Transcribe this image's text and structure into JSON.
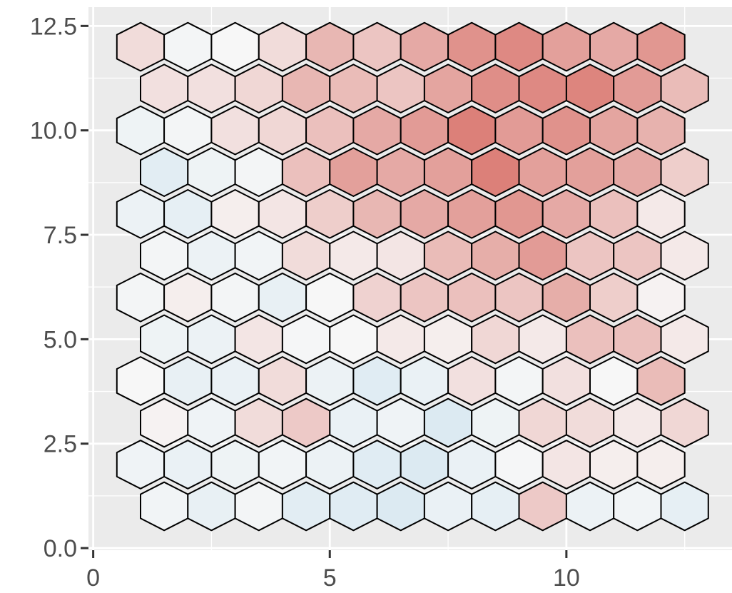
{
  "chart_data": {
    "type": "heatmap",
    "subtype": "hexbin",
    "title": "",
    "xlabel": "",
    "ylabel": "",
    "xlim": [
      -0.1,
      13.5
    ],
    "ylim": [
      -0.05,
      12.95
    ],
    "x_ticks": [
      0,
      5,
      10
    ],
    "x_tick_labels": [
      "0",
      "5",
      "10"
    ],
    "y_ticks": [
      0,
      2.5,
      5,
      7.5,
      10,
      12.5
    ],
    "y_tick_labels": [
      "0.0",
      "2.5",
      "5.0",
      "7.5",
      "10.0",
      "12.5"
    ],
    "grid": true,
    "legend": "none",
    "colors": {
      "panel": "#EBEBEB",
      "grid": "#FFFFFF",
      "hex_outline": "#000000",
      "low": "#D1E5F0",
      "mid": "#F7F7F7",
      "high": "#DC8079"
    },
    "value_range": [
      -1,
      1
    ],
    "hex_width": 1,
    "rows": [
      {
        "y": 1.0,
        "x_start": 1.5,
        "values": [
          -0.15,
          -0.4,
          -0.1,
          -0.55,
          -0.6,
          -0.7,
          -0.35,
          -0.45,
          0.5,
          -0.3,
          -0.15,
          -0.45
        ]
      },
      {
        "y": 2.0,
        "x_start": 1.0,
        "values": [
          -0.2,
          -0.35,
          -0.25,
          -0.15,
          -0.3,
          -0.6,
          -0.7,
          -0.35,
          -0.05,
          0.2,
          0.1,
          0.1
        ]
      },
      {
        "y": 3.0,
        "x_start": 1.5,
        "values": [
          0.05,
          -0.2,
          0.3,
          0.5,
          -0.35,
          -0.2,
          -0.7,
          -0.25,
          0.35,
          0.3,
          0.15,
          0.35
        ]
      },
      {
        "y": 4.0,
        "x_start": 1.0,
        "values": [
          0.0,
          -0.4,
          -0.35,
          0.3,
          -0.3,
          -0.6,
          -0.35,
          0.25,
          -0.1,
          0.25,
          0.0,
          0.65
        ]
      },
      {
        "y": 5.0,
        "x_start": 1.5,
        "values": [
          -0.25,
          -0.3,
          0.2,
          -0.05,
          0.0,
          0.15,
          0.1,
          0.35,
          0.15,
          0.6,
          0.6,
          0.15
        ]
      },
      {
        "y": 6.0,
        "x_start": 1.0,
        "values": [
          -0.1,
          0.1,
          -0.1,
          -0.4,
          0.0,
          0.4,
          0.55,
          0.6,
          0.55,
          0.8,
          0.45,
          0.05
        ]
      },
      {
        "y": 7.0,
        "x_start": 1.5,
        "values": [
          -0.1,
          -0.3,
          -0.15,
          0.3,
          0.15,
          0.2,
          0.65,
          0.8,
          1.0,
          0.55,
          0.55,
          0.15
        ]
      },
      {
        "y": 8.0,
        "x_start": 1.0,
        "values": [
          -0.3,
          -0.45,
          0.1,
          0.2,
          0.45,
          0.7,
          0.85,
          0.95,
          1.05,
          0.85,
          0.6,
          0.15
        ]
      },
      {
        "y": 9.0,
        "x_start": 1.5,
        "values": [
          -0.55,
          -0.25,
          -0.1,
          0.6,
          0.95,
          0.85,
          0.95,
          1.3,
          0.95,
          0.95,
          0.85,
          0.45
        ]
      },
      {
        "y": 10.0,
        "x_start": 1.0,
        "values": [
          -0.25,
          -0.1,
          0.25,
          0.35,
          0.6,
          0.85,
          1.0,
          1.3,
          1.0,
          1.1,
          0.9,
          0.75
        ]
      },
      {
        "y": 11.0,
        "x_start": 1.5,
        "values": [
          0.25,
          0.25,
          0.35,
          0.7,
          0.65,
          0.55,
          0.9,
          1.15,
          1.2,
          1.25,
          1.0,
          0.65
        ]
      },
      {
        "y": 12.0,
        "x_start": 1.0,
        "values": [
          0.3,
          -0.1,
          0.0,
          0.3,
          0.7,
          0.55,
          0.85,
          1.1,
          1.2,
          0.95,
          0.85,
          1.05
        ]
      }
    ]
  }
}
